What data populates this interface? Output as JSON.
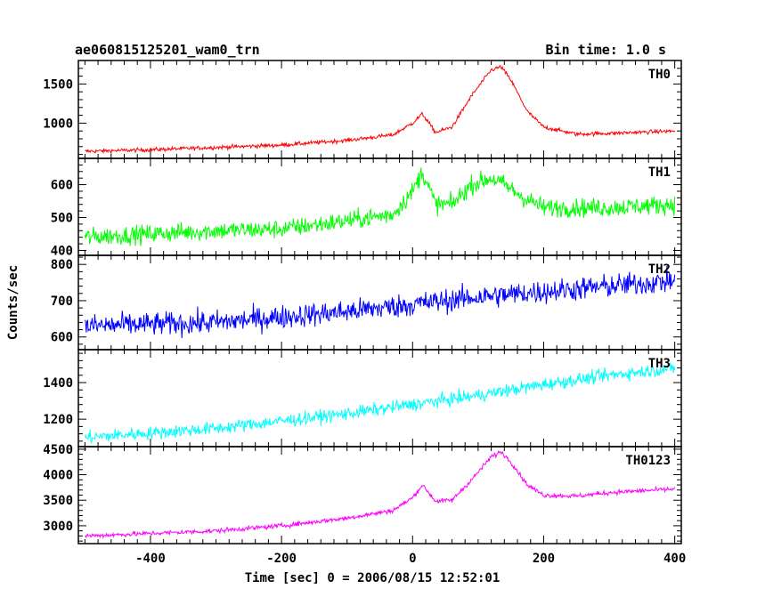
{
  "header": {
    "title_left": "ae060815125201_wam0_trn",
    "title_right": "Bin time: 1.0 s"
  },
  "axes": {
    "xlabel": "Time [sec] 0 = 2006/08/15 12:52:01",
    "ylabel": "Counts/sec"
  },
  "chart_data": {
    "type": "line",
    "title": "ae060815125201_wam0_trn",
    "subtitle": "Bin time: 1.0 s",
    "xlabel": "Time [sec] 0 = 2006/08/15 12:52:01",
    "ylabel": "Counts/sec",
    "xlim": [
      -510,
      410
    ],
    "x_ticks": [
      -400,
      -200,
      0,
      200,
      400
    ],
    "x_range": [
      -500,
      400
    ],
    "grid": false,
    "panels": [
      {
        "name": "TH0",
        "color": "#ff0000",
        "ylim": [
          550,
          1800
        ],
        "y_ticks": [
          1000,
          1500
        ],
        "noise": 25,
        "x": [
          -500,
          -400,
          -300,
          -200,
          -100,
          -30,
          0,
          15,
          35,
          60,
          90,
          120,
          135,
          150,
          175,
          200,
          250,
          300,
          400
        ],
        "y": [
          640,
          660,
          690,
          720,
          780,
          850,
          1000,
          1120,
          880,
          950,
          1350,
          1680,
          1720,
          1550,
          1150,
          950,
          860,
          870,
          900
        ]
      },
      {
        "name": "TH1",
        "color": "#00ff00",
        "ylim": [
          385,
          680
        ],
        "y_ticks": [
          400,
          500,
          600
        ],
        "noise": 28,
        "x": [
          -500,
          -400,
          -300,
          -200,
          -100,
          -30,
          0,
          15,
          35,
          60,
          90,
          120,
          140,
          170,
          200,
          300,
          400
        ],
        "y": [
          440,
          450,
          460,
          465,
          490,
          510,
          580,
          640,
          540,
          540,
          600,
          620,
          600,
          560,
          530,
          530,
          540
        ]
      },
      {
        "name": "TH2",
        "color": "#0000ff",
        "ylim": [
          565,
          825
        ],
        "y_ticks": [
          600,
          700,
          800
        ],
        "noise": 32,
        "x": [
          -500,
          -300,
          -100,
          0,
          100,
          200,
          300,
          400
        ],
        "y": [
          630,
          640,
          670,
          690,
          710,
          725,
          740,
          755
        ]
      },
      {
        "name": "TH3",
        "color": "#00ffff",
        "ylim": [
          1050,
          1580
        ],
        "y_ticks": [
          1200,
          1400
        ],
        "noise": 35,
        "x": [
          -500,
          -300,
          -100,
          0,
          100,
          200,
          300,
          400
        ],
        "y": [
          1100,
          1150,
          1230,
          1280,
          1330,
          1390,
          1440,
          1480
        ]
      },
      {
        "name": "TH0123",
        "color": "#ff00ff",
        "ylim": [
          2650,
          4550
        ],
        "y_ticks": [
          3000,
          3500,
          4000,
          4500
        ],
        "noise": 45,
        "x": [
          -500,
          -400,
          -300,
          -200,
          -100,
          -30,
          0,
          15,
          35,
          60,
          90,
          120,
          135,
          150,
          175,
          200,
          250,
          300,
          400
        ],
        "y": [
          2800,
          2850,
          2900,
          3000,
          3150,
          3300,
          3550,
          3800,
          3480,
          3500,
          3900,
          4350,
          4450,
          4250,
          3800,
          3600,
          3580,
          3650,
          3720
        ]
      }
    ]
  }
}
